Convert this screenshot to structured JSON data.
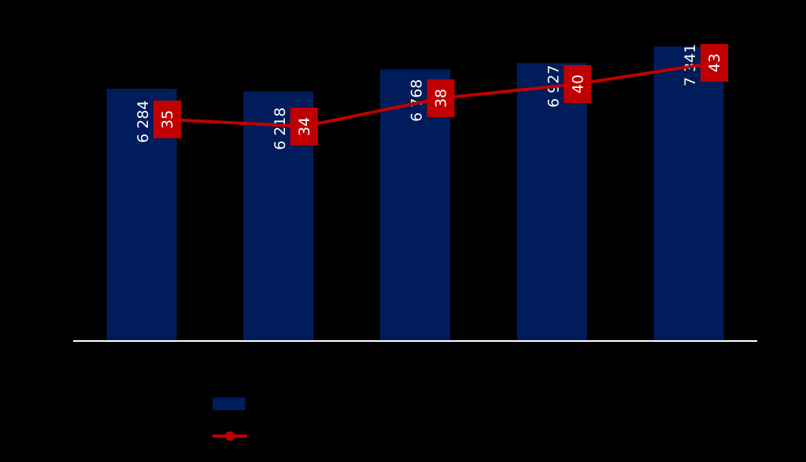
{
  "colors": {
    "bars": "#001c5a",
    "line": "#c00000",
    "axis": "#ffffff",
    "background": "#000000"
  },
  "chart_data": {
    "type": "bar",
    "categories": [
      "",
      "",
      "",
      "",
      ""
    ],
    "series": [
      {
        "type": "bar",
        "values": [
          6284,
          6218,
          6768,
          6927,
          7341
        ],
        "labels": [
          "6 284",
          "6 218",
          "6 768",
          "6 927",
          "7 341"
        ]
      },
      {
        "type": "line",
        "marker": "circle",
        "values": [
          35,
          34,
          38,
          40,
          43
        ]
      }
    ],
    "legend": "bottom-left",
    "grid": false
  }
}
